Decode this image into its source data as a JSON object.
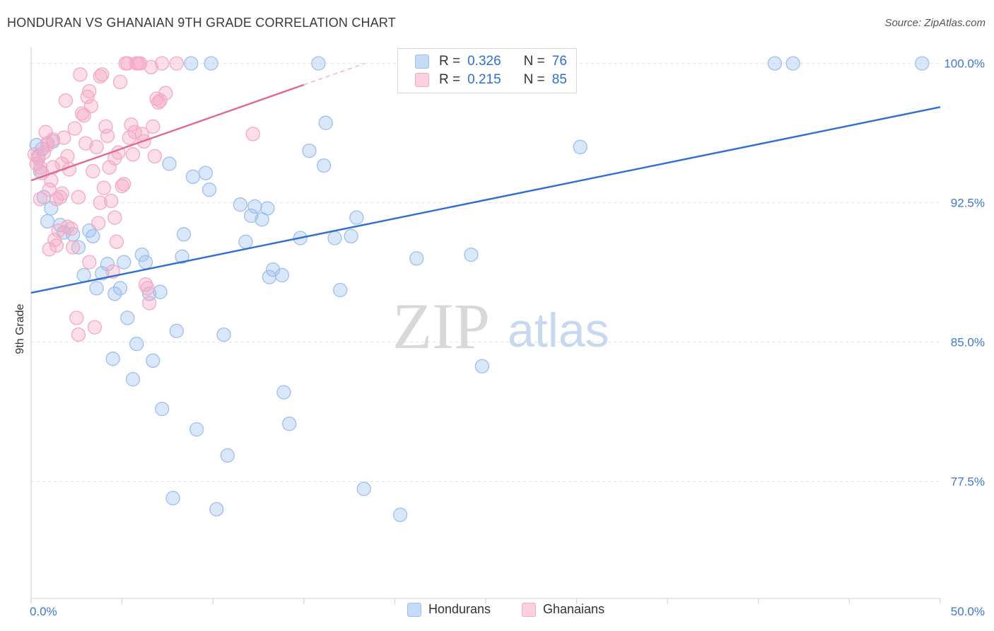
{
  "title": "HONDURAN VS GHANAIAN 9TH GRADE CORRELATION CHART",
  "source": "Source: ZipAtlas.com",
  "watermark": {
    "zip": "ZIP",
    "atlas": "atlas"
  },
  "legend": {
    "rows": [
      {
        "r_label": "R =",
        "r_value": "0.326",
        "n_label": "N =",
        "n_value": "76",
        "color": "#9dbfef"
      },
      {
        "r_label": "R =",
        "r_value": "0.215",
        "n_label": "N =",
        "n_value": "85",
        "color": "#f4a9c4"
      }
    ]
  },
  "bottom_legend": [
    {
      "label": "Hondurans",
      "color": "#9dbfef"
    },
    {
      "label": "Ghanaians",
      "color": "#f4a9c4"
    }
  ],
  "chart_data": {
    "type": "scatter",
    "title": "HONDURAN VS GHANAIAN 9TH GRADE CORRELATION CHART",
    "ylabel": "9th Grade",
    "xlim": [
      0,
      50
    ],
    "ylim": [
      71.2,
      100.9
    ],
    "x_tick_labels": [
      {
        "value": 0,
        "label": "0.0%"
      },
      {
        "value": 50,
        "label": "50.0%"
      }
    ],
    "y_tick_labels": [
      {
        "value": 100,
        "label": "100.0%"
      },
      {
        "value": 92.5,
        "label": "92.5%"
      },
      {
        "value": 85,
        "label": "85.0%"
      },
      {
        "value": 77.5,
        "label": "77.5%"
      }
    ],
    "grid": true,
    "series": [
      {
        "name": "Hondurans",
        "color": "#2f6fd0",
        "fill": "#9dbfef",
        "regression": {
          "x": [
            0,
            50
          ],
          "y": [
            87.65,
            97.65
          ]
        },
        "points": [
          [
            0.3,
            95.6
          ],
          [
            0.4,
            95.0
          ],
          [
            0.5,
            94.2
          ],
          [
            0.7,
            92.8
          ],
          [
            0.9,
            91.5
          ],
          [
            1.1,
            92.2
          ],
          [
            1.6,
            91.3
          ],
          [
            1.8,
            90.9
          ],
          [
            2.3,
            90.8
          ],
          [
            2.6,
            90.1
          ],
          [
            2.9,
            88.6
          ],
          [
            3.2,
            91.0
          ],
          [
            3.4,
            90.7
          ],
          [
            3.6,
            87.9
          ],
          [
            3.9,
            88.7
          ],
          [
            4.2,
            89.2
          ],
          [
            4.5,
            84.1
          ],
          [
            4.6,
            87.6
          ],
          [
            4.9,
            87.9
          ],
          [
            5.1,
            89.3
          ],
          [
            5.3,
            86.3
          ],
          [
            5.6,
            83.0
          ],
          [
            5.8,
            84.9
          ],
          [
            6.1,
            89.7
          ],
          [
            6.3,
            89.3
          ],
          [
            6.5,
            87.6
          ],
          [
            6.7,
            84.0
          ],
          [
            7.1,
            87.7
          ],
          [
            7.2,
            81.4
          ],
          [
            7.6,
            94.6
          ],
          [
            7.8,
            76.6
          ],
          [
            8.0,
            85.6
          ],
          [
            8.3,
            89.6
          ],
          [
            8.4,
            90.8
          ],
          [
            8.8,
            100.0
          ],
          [
            8.9,
            93.9
          ],
          [
            9.1,
            80.3
          ],
          [
            9.6,
            94.1
          ],
          [
            9.8,
            93.2
          ],
          [
            9.9,
            100.0
          ],
          [
            10.2,
            76.0
          ],
          [
            10.6,
            85.4
          ],
          [
            10.8,
            78.9
          ],
          [
            11.5,
            92.4
          ],
          [
            11.8,
            90.4
          ],
          [
            12.1,
            91.8
          ],
          [
            12.3,
            92.3
          ],
          [
            12.7,
            91.6
          ],
          [
            13.0,
            92.2
          ],
          [
            13.1,
            88.5
          ],
          [
            13.3,
            88.9
          ],
          [
            13.8,
            88.6
          ],
          [
            13.9,
            82.3
          ],
          [
            14.2,
            80.6
          ],
          [
            14.8,
            90.6
          ],
          [
            15.3,
            95.3
          ],
          [
            15.8,
            100.0
          ],
          [
            16.1,
            94.5
          ],
          [
            16.2,
            96.8
          ],
          [
            16.7,
            90.6
          ],
          [
            17.0,
            87.8
          ],
          [
            17.6,
            90.7
          ],
          [
            17.9,
            91.7
          ],
          [
            18.3,
            77.1
          ],
          [
            20.3,
            75.7
          ],
          [
            21.2,
            89.5
          ],
          [
            24.2,
            89.7
          ],
          [
            24.8,
            83.7
          ],
          [
            28.3,
            100.0
          ],
          [
            28.6,
            100.0
          ],
          [
            30.2,
            95.5
          ],
          [
            40.9,
            100.0
          ],
          [
            41.9,
            100.0
          ],
          [
            49.0,
            100.0
          ],
          [
            0.6,
            95.4
          ],
          [
            1.2,
            95.8
          ]
        ]
      },
      {
        "name": "Ghanaians",
        "color": "#e0678f",
        "fill": "#f4a9c4",
        "regression": {
          "x": [
            0,
            15
          ],
          "y": [
            93.7,
            98.85
          ]
        },
        "points": [
          [
            0.2,
            95.1
          ],
          [
            0.3,
            94.6
          ],
          [
            0.4,
            94.9
          ],
          [
            0.5,
            92.7
          ],
          [
            0.6,
            94.1
          ],
          [
            0.7,
            95.2
          ],
          [
            0.8,
            96.3
          ],
          [
            0.9,
            95.7
          ],
          [
            1.0,
            93.2
          ],
          [
            1.1,
            93.7
          ],
          [
            1.2,
            95.9
          ],
          [
            1.2,
            94.4
          ],
          [
            1.3,
            90.5
          ],
          [
            1.4,
            90.2
          ],
          [
            1.5,
            91.0
          ],
          [
            1.6,
            92.8
          ],
          [
            1.7,
            94.6
          ],
          [
            1.8,
            96.0
          ],
          [
            1.9,
            98.0
          ],
          [
            2.0,
            95.0
          ],
          [
            2.1,
            94.3
          ],
          [
            2.2,
            91.1
          ],
          [
            2.3,
            90.1
          ],
          [
            2.4,
            96.5
          ],
          [
            2.5,
            86.3
          ],
          [
            2.6,
            85.4
          ],
          [
            2.7,
            99.4
          ],
          [
            2.8,
            97.3
          ],
          [
            2.9,
            97.2
          ],
          [
            3.0,
            95.7
          ],
          [
            3.1,
            98.2
          ],
          [
            3.2,
            98.5
          ],
          [
            3.3,
            97.7
          ],
          [
            3.4,
            94.2
          ],
          [
            3.5,
            85.8
          ],
          [
            3.6,
            95.5
          ],
          [
            3.7,
            91.4
          ],
          [
            3.8,
            99.3
          ],
          [
            3.9,
            99.4
          ],
          [
            4.0,
            93.3
          ],
          [
            4.1,
            96.6
          ],
          [
            4.2,
            96.1
          ],
          [
            4.3,
            94.4
          ],
          [
            4.4,
            92.6
          ],
          [
            4.5,
            88.8
          ],
          [
            4.6,
            91.7
          ],
          [
            4.7,
            90.4
          ],
          [
            4.8,
            95.2
          ],
          [
            4.9,
            99.0
          ],
          [
            5.0,
            93.4
          ],
          [
            5.1,
            93.5
          ],
          [
            5.2,
            100.0
          ],
          [
            5.3,
            100.0
          ],
          [
            5.4,
            96.0
          ],
          [
            5.5,
            96.7
          ],
          [
            5.6,
            95.1
          ],
          [
            5.7,
            96.3
          ],
          [
            5.8,
            100.0
          ],
          [
            5.9,
            100.0
          ],
          [
            6.0,
            100.0
          ],
          [
            6.1,
            96.2
          ],
          [
            6.2,
            95.8
          ],
          [
            6.3,
            88.1
          ],
          [
            6.4,
            87.9
          ],
          [
            6.5,
            87.1
          ],
          [
            6.6,
            99.8
          ],
          [
            6.7,
            96.6
          ],
          [
            6.8,
            95.0
          ],
          [
            6.9,
            98.1
          ],
          [
            7.0,
            97.9
          ],
          [
            7.1,
            98.0
          ],
          [
            7.2,
            100.0
          ],
          [
            7.4,
            98.4
          ],
          [
            8.0,
            100.0
          ],
          [
            12.2,
            96.2
          ],
          [
            1.0,
            90.0
          ],
          [
            2.6,
            92.8
          ],
          [
            3.2,
            89.3
          ],
          [
            0.5,
            94.4
          ],
          [
            1.4,
            92.7
          ],
          [
            2.0,
            91.2
          ],
          [
            3.8,
            92.5
          ],
          [
            4.6,
            94.9
          ],
          [
            0.9,
            95.6
          ],
          [
            1.7,
            93.0
          ]
        ]
      }
    ]
  }
}
